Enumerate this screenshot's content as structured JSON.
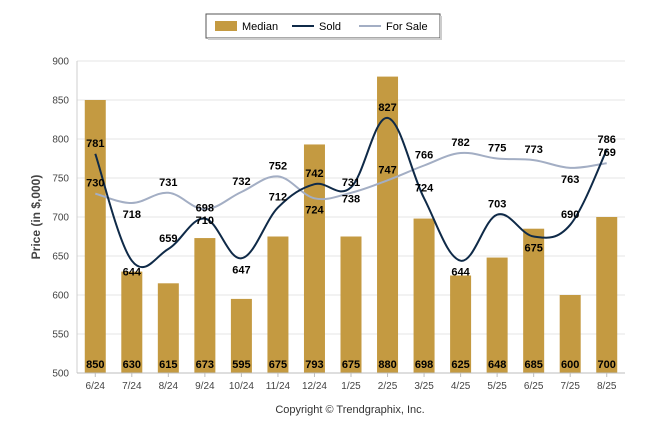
{
  "chart_data": {
    "type": "bar",
    "categories": [
      "6/24",
      "7/24",
      "8/24",
      "9/24",
      "10/24",
      "11/24",
      "12/24",
      "1/25",
      "2/25",
      "3/25",
      "4/25",
      "5/25",
      "6/25",
      "7/25",
      "8/25"
    ],
    "series": [
      {
        "name": "Median",
        "kind": "bar",
        "color": "#c49a41",
        "values": [
          850,
          630,
          615,
          673,
          595,
          675,
          793,
          675,
          880,
          698,
          625,
          648,
          685,
          600,
          700
        ]
      },
      {
        "name": "Sold",
        "kind": "line",
        "color": "#0f2a48",
        "values": [
          781,
          644,
          659,
          698,
          647,
          712,
          742,
          738,
          827,
          724,
          644,
          703,
          675,
          690,
          786
        ]
      },
      {
        "name": "For Sale",
        "kind": "line",
        "color": "#a3aec4",
        "values": [
          730,
          718,
          731,
          710,
          732,
          752,
          724,
          731,
          747,
          766,
          782,
          775,
          773,
          763,
          769
        ]
      }
    ],
    "ylabel": "Price (in $,000)",
    "ylim": [
      500,
      900
    ],
    "yticks": [
      "500",
      "550",
      "600",
      "650",
      "700",
      "750",
      "800",
      "850",
      "900"
    ],
    "grid": true,
    "legend_position": "top-center",
    "footer": "Copyright © Trendgraphix, Inc."
  }
}
